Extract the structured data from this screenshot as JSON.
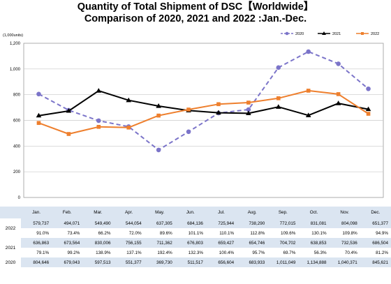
{
  "title_line1": "Quantity of Total Shipment of DSC【Worldwide】",
  "title_line2": "Comparison of 2020, 2021 and 2022 :Jan.-Dec.",
  "chart_data": {
    "type": "line",
    "ylabel": "(1,000units)",
    "ylim": [
      0,
      1200
    ],
    "yticks": [
      "0",
      "200",
      "400",
      "600",
      "800",
      "1,000",
      "1,200"
    ],
    "categories": [
      "Jan.",
      "Feb.",
      "Mar.",
      "Apr.",
      "May.",
      "Jun.",
      "Jul.",
      "Aug.",
      "Sep.",
      "Oct.",
      "Nov.",
      "Dec."
    ],
    "legend_position": "top-right",
    "series": [
      {
        "name": "2020",
        "color": "#7b74c9",
        "style": "dashed",
        "marker": "circle",
        "values": [
          804.646,
          679.043,
          597.513,
          551.377,
          369.73,
          511.517,
          656.604,
          683.933,
          1011.049,
          1134.888,
          1040.371,
          845.621
        ]
      },
      {
        "name": "2021",
        "color": "#000000",
        "style": "solid",
        "marker": "triangle",
        "values": [
          636.863,
          673.564,
          830.006,
          756.155,
          711.362,
          676.803,
          659.427,
          654.746,
          704.702,
          638.853,
          732.536,
          686.504
        ]
      },
      {
        "name": "2022",
        "color": "#ee7f2d",
        "style": "solid",
        "marker": "square",
        "values": [
          579.737,
          494.071,
          549.49,
          544.054,
          637.305,
          684.136,
          725.944,
          738.29,
          772.015,
          831.081,
          804.098,
          651.377
        ]
      }
    ]
  },
  "table": {
    "months": [
      "Jan.",
      "Feb.",
      "Mar.",
      "Apr.",
      "May.",
      "Jun.",
      "Jul.",
      "Aug.",
      "Sep.",
      "Oct.",
      "Nov.",
      "Dec."
    ],
    "rows": [
      {
        "year": "2022",
        "values": [
          "579,737",
          "494,071",
          "549,490",
          "544,054",
          "637,305",
          "684,136",
          "725,944",
          "738,290",
          "772,015",
          "831,081",
          "804,098",
          "651,377"
        ],
        "pct": [
          "91.0%",
          "73.4%",
          "66.2%",
          "72.0%",
          "89.6%",
          "101.1%",
          "110.1%",
          "112.8%",
          "109.6%",
          "130.1%",
          "109.8%",
          "94.9%"
        ]
      },
      {
        "year": "2021",
        "values": [
          "636,863",
          "673,564",
          "830,006",
          "756,155",
          "711,362",
          "676,803",
          "659,427",
          "654,746",
          "704,702",
          "638,853",
          "732,536",
          "686,504"
        ],
        "pct": [
          "79.1%",
          "99.2%",
          "138.9%",
          "137.1%",
          "192.4%",
          "132.3%",
          "100.4%",
          "95.7%",
          "69.7%",
          "56.3%",
          "70.4%",
          "81.2%"
        ]
      },
      {
        "year": "2020",
        "values": [
          "804,646",
          "679,043",
          "597,513",
          "551,377",
          "369,730",
          "511,517",
          "656,604",
          "683,933",
          "1,011,049",
          "1,134,888",
          "1,040,371",
          "845,621"
        ]
      }
    ]
  }
}
